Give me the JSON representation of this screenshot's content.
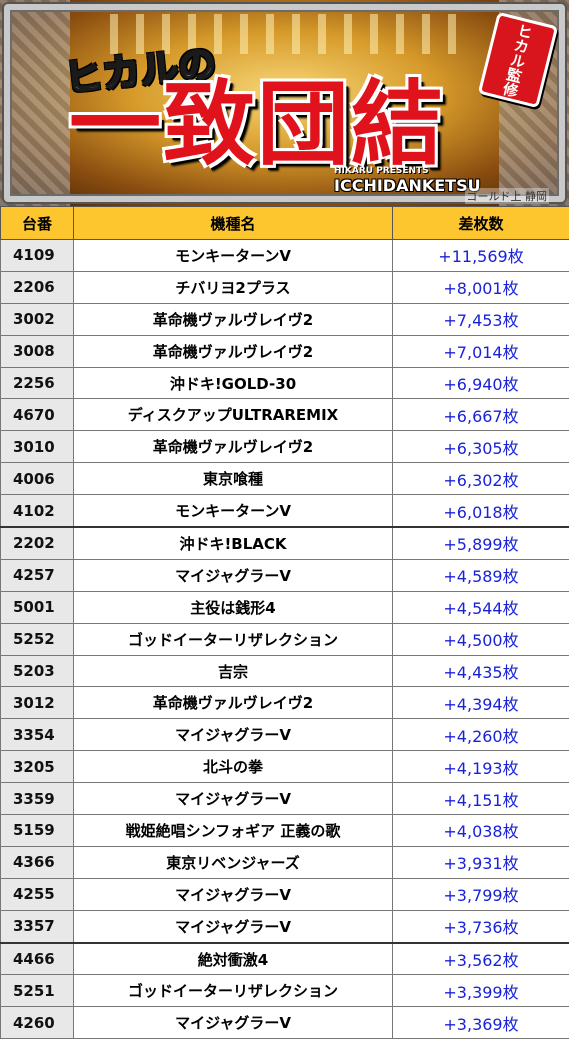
{
  "banner": {
    "subtitle": "ヒカルの",
    "title": "一致団結",
    "badge": "ヒカル監修",
    "presents_small": "HIKARU PRESENTS",
    "presents_main": "ICCHIDANKETSU",
    "credit": "ゴールド上 静岡",
    "colors": {
      "title_red": "#e0121b",
      "header_yellow": "#fdc62f",
      "value_blue": "#1a22d8"
    }
  },
  "table": {
    "headers": {
      "number": "台番",
      "model": "機種名",
      "diff": "差枚数"
    },
    "rows": [
      {
        "number": "4109",
        "model": "モンキーターンV",
        "diff": "+11,569枚"
      },
      {
        "number": "2206",
        "model": "チバリヨ2プラス",
        "diff": "+8,001枚"
      },
      {
        "number": "3002",
        "model": "革命機ヴァルヴレイヴ2",
        "diff": "+7,453枚"
      },
      {
        "number": "3008",
        "model": "革命機ヴァルヴレイヴ2",
        "diff": "+7,014枚"
      },
      {
        "number": "2256",
        "model": "沖ドキ!GOLD-30",
        "diff": "+6,940枚"
      },
      {
        "number": "4670",
        "model": "ディスクアップULTRAREMIX",
        "diff": "+6,667枚"
      },
      {
        "number": "3010",
        "model": "革命機ヴァルヴレイヴ2",
        "diff": "+6,305枚"
      },
      {
        "number": "4006",
        "model": "東京喰種",
        "diff": "+6,302枚"
      },
      {
        "number": "4102",
        "model": "モンキーターンV",
        "diff": "+6,018枚"
      },
      {
        "number": "2202",
        "model": "沖ドキ!BLACK",
        "diff": "+5,899枚"
      },
      {
        "number": "4257",
        "model": "マイジャグラーV",
        "diff": "+4,589枚"
      },
      {
        "number": "5001",
        "model": "主役は銭形4",
        "diff": "+4,544枚"
      },
      {
        "number": "5252",
        "model": "ゴッドイーターリザレクション",
        "diff": "+4,500枚"
      },
      {
        "number": "5203",
        "model": "吉宗",
        "diff": "+4,435枚"
      },
      {
        "number": "3012",
        "model": "革命機ヴァルヴレイヴ2",
        "diff": "+4,394枚"
      },
      {
        "number": "3354",
        "model": "マイジャグラーV",
        "diff": "+4,260枚"
      },
      {
        "number": "3205",
        "model": "北斗の拳",
        "diff": "+4,193枚"
      },
      {
        "number": "3359",
        "model": "マイジャグラーV",
        "diff": "+4,151枚"
      },
      {
        "number": "5159",
        "model": "戦姫絶唱シンフォギア 正義の歌",
        "diff": "+4,038枚"
      },
      {
        "number": "4366",
        "model": "東京リベンジャーズ",
        "diff": "+3,931枚"
      },
      {
        "number": "4255",
        "model": "マイジャグラーV",
        "diff": "+3,799枚"
      },
      {
        "number": "3357",
        "model": "マイジャグラーV",
        "diff": "+3,736枚"
      },
      {
        "number": "4466",
        "model": "絶対衝激4",
        "diff": "+3,562枚"
      },
      {
        "number": "5251",
        "model": "ゴッドイーターリザレクション",
        "diff": "+3,399枚"
      },
      {
        "number": "4260",
        "model": "マイジャグラーV",
        "diff": "+3,369枚"
      }
    ]
  }
}
